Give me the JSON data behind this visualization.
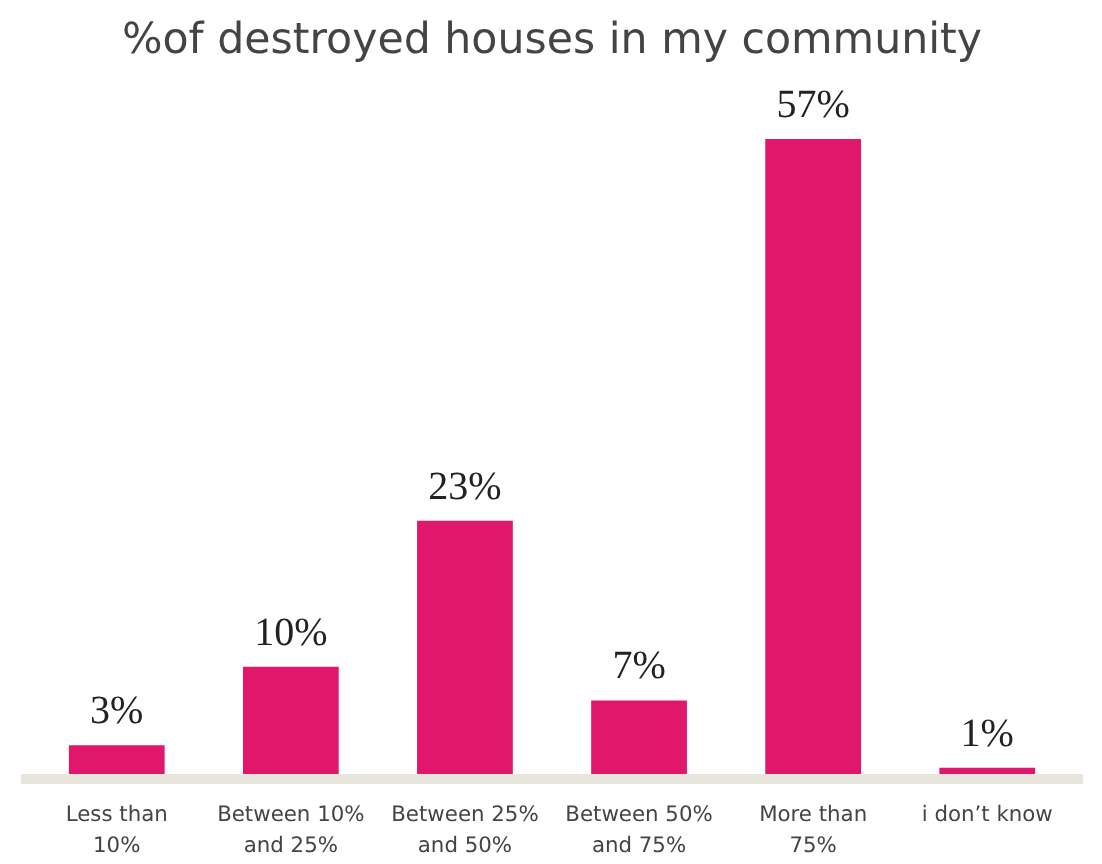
{
  "chart_data": {
    "type": "bar",
    "title": "%of destroyed houses in my community",
    "categories": [
      "Less than 10%",
      "Between 10% and 25%",
      "Between 25% and 50%",
      "Between 50% and 75%",
      "More than 75%",
      "i don’t know"
    ],
    "values": [
      3,
      10,
      23,
      7,
      57,
      1
    ],
    "value_labels": [
      "3%",
      "10%",
      "23%",
      "7%",
      "57%",
      "1%"
    ],
    "color": "#e0176a",
    "grid": false
  }
}
